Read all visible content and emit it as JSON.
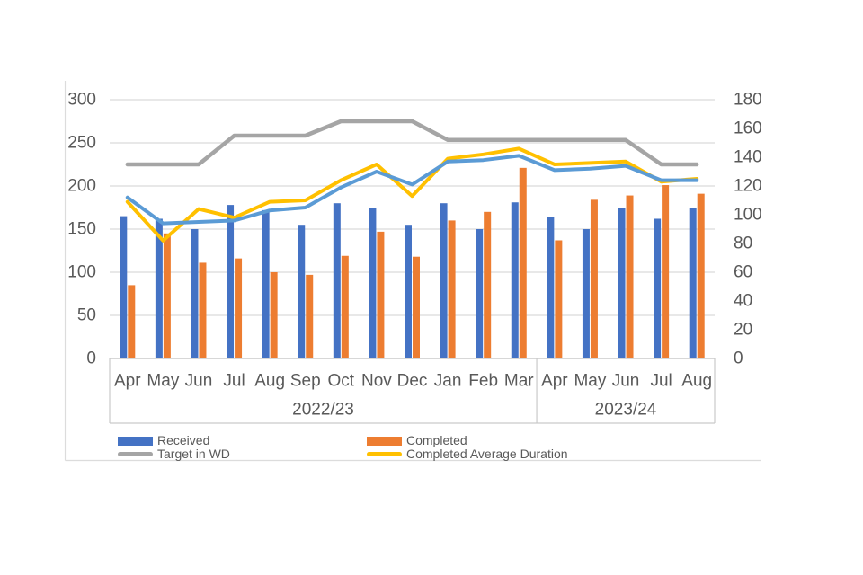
{
  "page": {
    "background": "#ffffff"
  },
  "legend": {
    "items": [
      {
        "label": "Received",
        "color": "#4472C4",
        "marker": "bar"
      },
      {
        "label": "Completed",
        "color": "#ED7D31",
        "marker": "bar"
      },
      {
        "label": "Target in WD",
        "color": "#A5A5A5",
        "marker": "line"
      },
      {
        "label": "Completed Average Duration",
        "color": "#FFC000",
        "marker": "line"
      }
    ]
  },
  "chart_data": {
    "type": "combo: clustered bars (left axis) + lines (right axis)",
    "categories": [
      "Apr",
      "May",
      "Jun",
      "Jul",
      "Aug",
      "Sep",
      "Oct",
      "Nov",
      "Dec",
      "Jan",
      "Feb",
      "Mar",
      "Apr",
      "May",
      "Jun",
      "Jul",
      "Aug"
    ],
    "category_groups": [
      {
        "label": "2022/23",
        "count": 12
      },
      {
        "label": "2023/24",
        "count": 5
      }
    ],
    "left_axis": {
      "min": 0,
      "max": 300,
      "step": 50,
      "ticks": [
        "300",
        "250",
        "200",
        "150",
        "100",
        "50",
        "0"
      ]
    },
    "right_axis": {
      "min": 0,
      "max": 180,
      "step": 20,
      "ticks": [
        "180",
        "160",
        "140",
        "120",
        "100",
        "80",
        "60",
        "40",
        "20",
        "0"
      ]
    },
    "grid": "horizontal gridlines only, at left-axis ticks",
    "legend_position": "bottom-left, two columns",
    "series": [
      {
        "name": "Received",
        "type": "bar",
        "axis": "left",
        "color": "#4472C4",
        "values": [
          165,
          162,
          150,
          178,
          172,
          155,
          180,
          174,
          155,
          180,
          150,
          181,
          164,
          150,
          175,
          162,
          175
        ]
      },
      {
        "name": "Completed",
        "type": "bar",
        "axis": "left",
        "color": "#ED7D31",
        "values": [
          85,
          145,
          111,
          116,
          100,
          97,
          119,
          147,
          118,
          160,
          170,
          221,
          137,
          184,
          189,
          201,
          191
        ]
      },
      {
        "name": "Target in WD",
        "type": "line",
        "axis": "right",
        "color": "#A5A5A5",
        "values": [
          135,
          135,
          135,
          155,
          155,
          155,
          165,
          165,
          165,
          152,
          152,
          152,
          152,
          152,
          152,
          135,
          135
        ]
      },
      {
        "name": "Completed Average Duration",
        "type": "line",
        "axis": "right",
        "color": "#FFC000",
        "values": [
          109,
          82,
          104,
          98,
          109,
          110,
          124,
          135,
          113,
          139,
          142,
          146,
          135,
          136,
          137,
          123,
          125
        ]
      },
      {
        "name": "",
        "id": "unlabeled-light-blue-line",
        "in_legend": false,
        "type": "line",
        "axis": "right",
        "color": "#5B9BD5",
        "values": [
          112,
          94,
          95,
          96,
          103,
          105,
          119,
          130,
          121,
          137,
          138,
          141,
          131,
          132,
          134,
          124,
          124
        ]
      }
    ]
  }
}
